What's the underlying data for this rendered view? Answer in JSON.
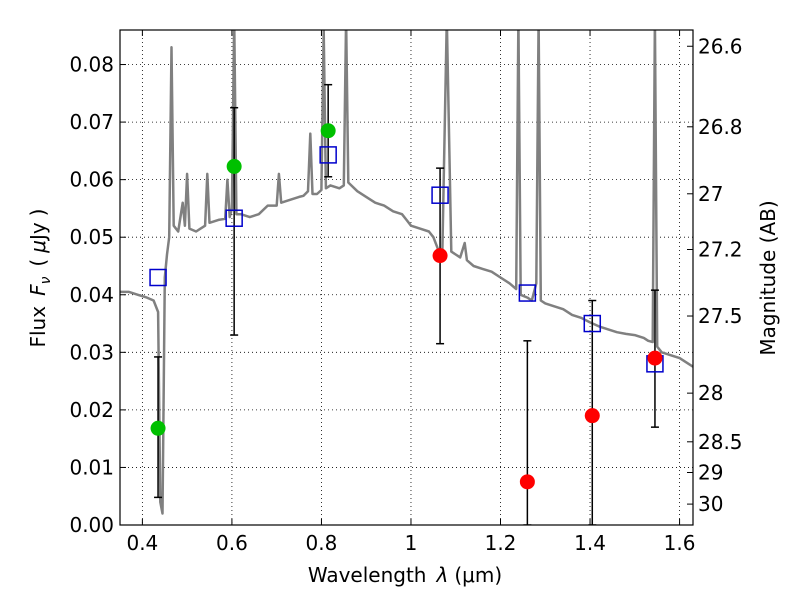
{
  "chart_data": {
    "type": "scatter",
    "xlabel_text": "Wavelength",
    "xlabel_lambda": "λ",
    "xlabel_unit": "(μm)",
    "ylabel_text": "Flux",
    "ylabel_symbol": "F",
    "ylabel_sub": "ν",
    "ylabel_unit_open": "(",
    "ylabel_unit_mu": "μ",
    "ylabel_unit": "Jy",
    "ylabel_unit_close": ")",
    "y2label": "Magnitude (AB)",
    "xlim": [
      0.35,
      1.63
    ],
    "ylim": [
      0.0,
      0.086
    ],
    "grid": true,
    "x_ticks": [
      {
        "v": 0.4,
        "label": "0.4"
      },
      {
        "v": 0.6,
        "label": "0.6"
      },
      {
        "v": 0.8,
        "label": "0.8"
      },
      {
        "v": 1.0,
        "label": "1"
      },
      {
        "v": 1.2,
        "label": "1.2"
      },
      {
        "v": 1.4,
        "label": "1.4"
      },
      {
        "v": 1.6,
        "label": "1.6"
      }
    ],
    "y_ticks": [
      {
        "v": 0.0,
        "label": "0.00"
      },
      {
        "v": 0.01,
        "label": "0.01"
      },
      {
        "v": 0.02,
        "label": "0.02"
      },
      {
        "v": 0.03,
        "label": "0.03"
      },
      {
        "v": 0.04,
        "label": "0.04"
      },
      {
        "v": 0.05,
        "label": "0.05"
      },
      {
        "v": 0.06,
        "label": "0.06"
      },
      {
        "v": 0.07,
        "label": "0.07"
      },
      {
        "v": 0.08,
        "label": "0.08"
      }
    ],
    "mag_ticks": [
      {
        "mag": 26.6,
        "label": "26.6"
      },
      {
        "mag": 26.8,
        "label": "26.8"
      },
      {
        "mag": 27.0,
        "label": "27"
      },
      {
        "mag": 27.2,
        "label": "27.2"
      },
      {
        "mag": 27.5,
        "label": "27.5"
      },
      {
        "mag": 28.0,
        "label": "28"
      },
      {
        "mag": 28.5,
        "label": "28.5"
      },
      {
        "mag": 29.0,
        "label": "29"
      },
      {
        "mag": 30.0,
        "label": "30"
      }
    ],
    "colors": {
      "spectrum": "#808080",
      "detected": "#00c000",
      "upper": "#ff0000",
      "model": "#0000cc",
      "errorbar": "#000000"
    },
    "series": [
      {
        "kind": "spectrum",
        "points": [
          [
            0.35,
            0.0405
          ],
          [
            0.37,
            0.0405
          ],
          [
            0.39,
            0.04
          ],
          [
            0.41,
            0.0395
          ],
          [
            0.425,
            0.039
          ],
          [
            0.435,
            0.037
          ],
          [
            0.44,
            0.004
          ],
          [
            0.445,
            0.002
          ],
          [
            0.45,
            0.043
          ],
          [
            0.455,
            0.047
          ],
          [
            0.46,
            0.05
          ],
          [
            0.465,
            0.083
          ],
          [
            0.47,
            0.052
          ],
          [
            0.48,
            0.051
          ],
          [
            0.49,
            0.056
          ],
          [
            0.495,
            0.052
          ],
          [
            0.5,
            0.061
          ],
          [
            0.505,
            0.0515
          ],
          [
            0.52,
            0.051
          ],
          [
            0.53,
            0.0515
          ],
          [
            0.54,
            0.052
          ],
          [
            0.545,
            0.061
          ],
          [
            0.55,
            0.0525
          ],
          [
            0.57,
            0.053
          ],
          [
            0.585,
            0.0532
          ],
          [
            0.59,
            0.06
          ],
          [
            0.595,
            0.0535
          ],
          [
            0.6,
            0.055
          ],
          [
            0.605,
            0.088
          ],
          [
            0.61,
            0.054
          ],
          [
            0.62,
            0.054
          ],
          [
            0.64,
            0.0535
          ],
          [
            0.66,
            0.054
          ],
          [
            0.68,
            0.0555
          ],
          [
            0.7,
            0.0555
          ],
          [
            0.705,
            0.061
          ],
          [
            0.71,
            0.056
          ],
          [
            0.73,
            0.0565
          ],
          [
            0.75,
            0.057
          ],
          [
            0.76,
            0.0572
          ],
          [
            0.77,
            0.058
          ],
          [
            0.775,
            0.068
          ],
          [
            0.78,
            0.0575
          ],
          [
            0.79,
            0.0575
          ],
          [
            0.8,
            0.0582
          ],
          [
            0.805,
            0.086
          ],
          [
            0.81,
            0.0585
          ],
          [
            0.82,
            0.059
          ],
          [
            0.84,
            0.0585
          ],
          [
            0.85,
            0.059
          ],
          [
            0.855,
            0.088
          ],
          [
            0.86,
            0.0595
          ],
          [
            0.88,
            0.058
          ],
          [
            0.9,
            0.057
          ],
          [
            0.92,
            0.056
          ],
          [
            0.94,
            0.0555
          ],
          [
            0.96,
            0.0545
          ],
          [
            0.98,
            0.054
          ],
          [
            0.99,
            0.053
          ],
          [
            1.0,
            0.052
          ],
          [
            1.02,
            0.0515
          ],
          [
            1.04,
            0.051
          ],
          [
            1.05,
            0.05
          ],
          [
            1.06,
            0.048
          ],
          [
            1.07,
            0.047
          ],
          [
            1.08,
            0.088
          ],
          [
            1.09,
            0.0475
          ],
          [
            1.1,
            0.047
          ],
          [
            1.11,
            0.0465
          ],
          [
            1.12,
            0.049
          ],
          [
            1.125,
            0.046
          ],
          [
            1.14,
            0.045
          ],
          [
            1.16,
            0.0445
          ],
          [
            1.18,
            0.044
          ],
          [
            1.2,
            0.043
          ],
          [
            1.22,
            0.042
          ],
          [
            1.235,
            0.041
          ],
          [
            1.24,
            0.088
          ],
          [
            1.245,
            0.04
          ],
          [
            1.26,
            0.0395
          ],
          [
            1.27,
            0.039
          ],
          [
            1.28,
            0.042
          ],
          [
            1.285,
            0.088
          ],
          [
            1.29,
            0.039
          ],
          [
            1.3,
            0.0385
          ],
          [
            1.32,
            0.038
          ],
          [
            1.34,
            0.0375
          ],
          [
            1.36,
            0.0365
          ],
          [
            1.38,
            0.036
          ],
          [
            1.4,
            0.0352
          ],
          [
            1.42,
            0.0345
          ],
          [
            1.44,
            0.034
          ],
          [
            1.46,
            0.0335
          ],
          [
            1.48,
            0.0332
          ],
          [
            1.5,
            0.033
          ],
          [
            1.52,
            0.0325
          ],
          [
            1.53,
            0.032
          ],
          [
            1.54,
            0.0318
          ],
          [
            1.545,
            0.088
          ],
          [
            1.55,
            0.031
          ],
          [
            1.56,
            0.03
          ],
          [
            1.58,
            0.0295
          ],
          [
            1.6,
            0.029
          ],
          [
            1.62,
            0.028
          ],
          [
            1.63,
            0.0275
          ]
        ]
      },
      {
        "kind": "detected",
        "points": [
          {
            "x": 0.435,
            "y": 0.0168,
            "err": [
              0.0048,
              0.0292
            ]
          },
          {
            "x": 0.605,
            "y": 0.0623
          },
          {
            "x": 0.815,
            "y": 0.0685
          }
        ]
      },
      {
        "kind": "upper",
        "points": [
          {
            "x": 1.065,
            "y": 0.0468
          },
          {
            "x": 1.26,
            "y": 0.0075
          },
          {
            "x": 1.405,
            "y": 0.019
          },
          {
            "x": 1.545,
            "y": 0.029
          }
        ]
      },
      {
        "kind": "model",
        "points": [
          {
            "x": 0.435,
            "y": 0.043
          },
          {
            "x": 0.605,
            "y": 0.0533,
            "err": [
              0.033,
              0.0725
            ]
          },
          {
            "x": 0.815,
            "y": 0.0643,
            "err": [
              0.0605,
              0.0765
            ]
          },
          {
            "x": 1.065,
            "y": 0.0573,
            "err": [
              0.0315,
              0.062
            ]
          },
          {
            "x": 1.26,
            "y": 0.0403,
            "err": [
              0.0,
              0.032
            ]
          },
          {
            "x": 1.405,
            "y": 0.035,
            "err": [
              0.0,
              0.039
            ]
          },
          {
            "x": 1.545,
            "y": 0.028,
            "err": [
              0.017,
              0.0408
            ]
          }
        ]
      }
    ]
  }
}
